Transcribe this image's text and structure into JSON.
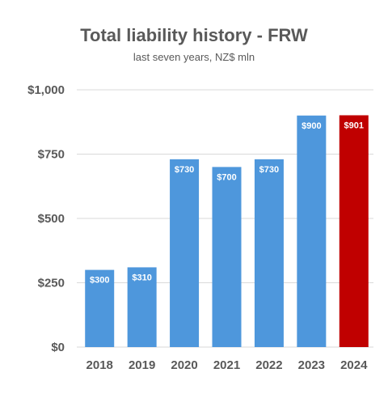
{
  "chart_data": {
    "type": "bar",
    "title": "Total liability history - FRW",
    "subtitle": "last seven years, NZ$ mln",
    "categories": [
      "2018",
      "2019",
      "2020",
      "2021",
      "2022",
      "2023",
      "2024"
    ],
    "values": [
      300,
      310,
      730,
      700,
      730,
      900,
      901
    ],
    "data_labels": [
      "$300",
      "$310",
      "$730",
      "$700",
      "$730",
      "$900",
      "$901"
    ],
    "ylim": [
      0,
      1000
    ],
    "yticks": [
      0,
      250,
      500,
      750,
      1000
    ],
    "ytick_labels": [
      "$0",
      "$250",
      "$500",
      "$750",
      "$1,000"
    ],
    "grid": true,
    "legend": "none",
    "colors": {
      "bar": "#4e97dc",
      "highlight": "#c00000",
      "highlight_index": 6,
      "grid": "#d9d9d9",
      "text": "#595959"
    }
  }
}
